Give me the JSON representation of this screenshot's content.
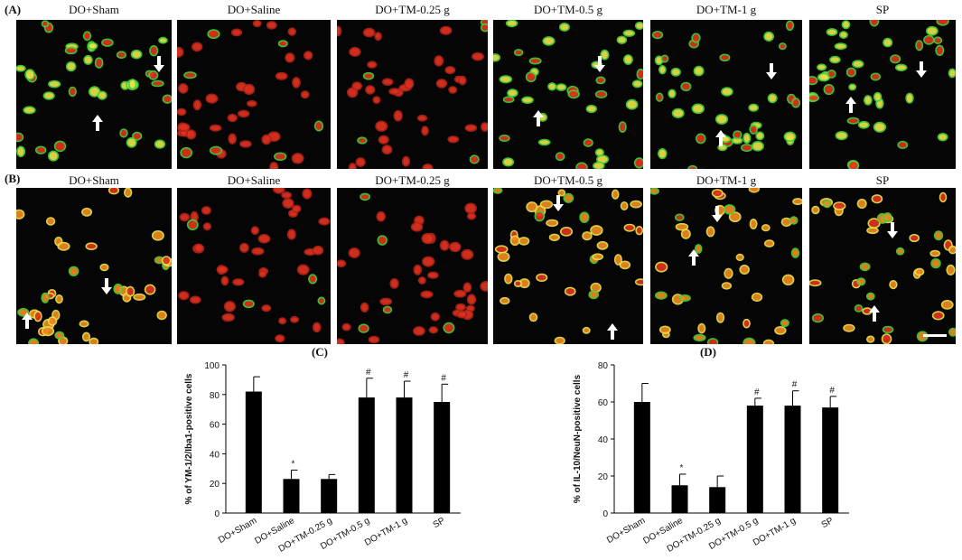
{
  "row_a_label": "(A)",
  "row_b_label": "(B)",
  "micrographs": {
    "row_a": [
      {
        "title": "DO+Sham",
        "dominant": "green"
      },
      {
        "title": "DO+Saline",
        "dominant": "red"
      },
      {
        "title": "DO+TM-0.25 g",
        "dominant": "red"
      },
      {
        "title": "DO+TM-0.5 g",
        "dominant": "green"
      },
      {
        "title": "DO+TM-1 g",
        "dominant": "green"
      },
      {
        "title": "SP",
        "dominant": "green"
      }
    ],
    "row_b": [
      {
        "title": "DO+Sham",
        "dominant": "orange"
      },
      {
        "title": "DO+Saline",
        "dominant": "red"
      },
      {
        "title": "DO+TM-0.25 g",
        "dominant": "red"
      },
      {
        "title": "DO+TM-0.5 g",
        "dominant": "orange"
      },
      {
        "title": "DO+TM-1 g",
        "dominant": "orange"
      },
      {
        "title": "SP",
        "dominant": "orange"
      }
    ],
    "icons": [
      "arrow-up-icon",
      "arrow-down-icon"
    ],
    "colors": {
      "green": "#3fd33a",
      "red": "#e0321e",
      "orange": "#f08a22",
      "yellow": "#e9e24a",
      "background": "#050505",
      "scale_bar": "#ffffff"
    }
  },
  "chart_data": [
    {
      "panel_label": "(C)",
      "type": "bar",
      "categories": [
        "DO+Sham",
        "DO+Saline",
        "DO+TM-0.25 g",
        "DO+TM-0.5 g",
        "DO+TM-1 g",
        "SP"
      ],
      "values": [
        82,
        23,
        23,
        78,
        78,
        75
      ],
      "errors": [
        10,
        6,
        3,
        13,
        11,
        12
      ],
      "markers": [
        "",
        "*",
        "",
        "#",
        "#",
        "#"
      ],
      "ylabel": "% of YM-1/2/Iba1-positive cells",
      "xlabel": "",
      "ylim": [
        0,
        100
      ],
      "yticks": [
        0,
        20,
        40,
        60,
        80,
        100
      ],
      "bar_color": "#000000"
    },
    {
      "panel_label": "(D)",
      "type": "bar",
      "categories": [
        "DO+Sham",
        "DO+Saline",
        "DO+TM-0.25 g",
        "DO+TM-0.5 g",
        "DO+TM-1 g",
        "SP"
      ],
      "values": [
        60,
        15,
        14,
        58,
        58,
        57
      ],
      "errors": [
        10,
        6,
        6,
        4,
        8,
        6
      ],
      "markers": [
        "",
        "*",
        "",
        "#",
        "#",
        "#"
      ],
      "ylabel": "% of IL-10/NeuN-positive cells",
      "xlabel": "",
      "ylim": [
        0,
        80
      ],
      "yticks": [
        0,
        20,
        40,
        60,
        80
      ],
      "bar_color": "#000000"
    }
  ]
}
